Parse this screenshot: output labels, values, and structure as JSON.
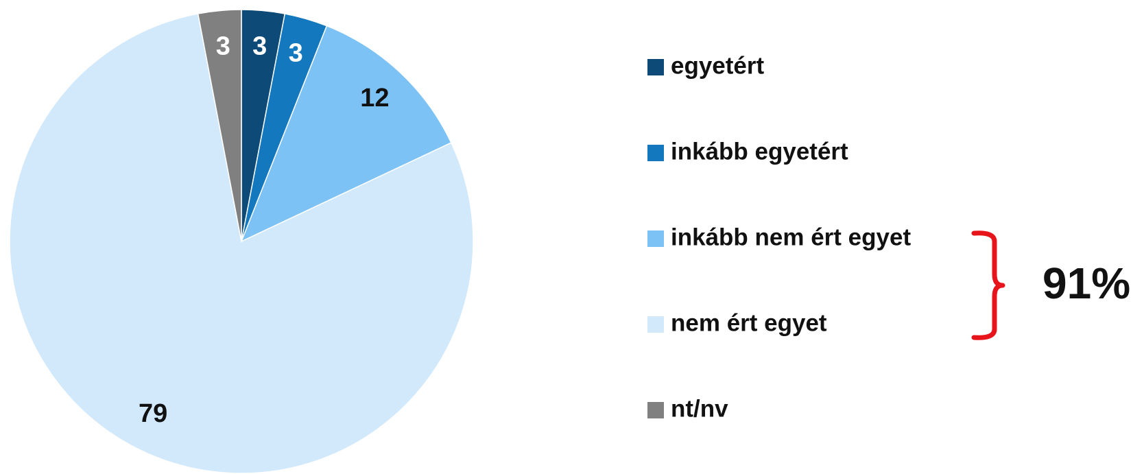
{
  "chart_data": {
    "type": "pie",
    "categories": [
      "egyetért",
      "inkább egyetért",
      "inkább nem ért egyet",
      "nem ért egyet",
      "nt/nv"
    ],
    "values": [
      3,
      3,
      12,
      79,
      3
    ],
    "colors": [
      "#0d4a78",
      "#1478be",
      "#7dc2f4",
      "#d2e9fb",
      "#808080"
    ],
    "annotation": "91%"
  }
}
